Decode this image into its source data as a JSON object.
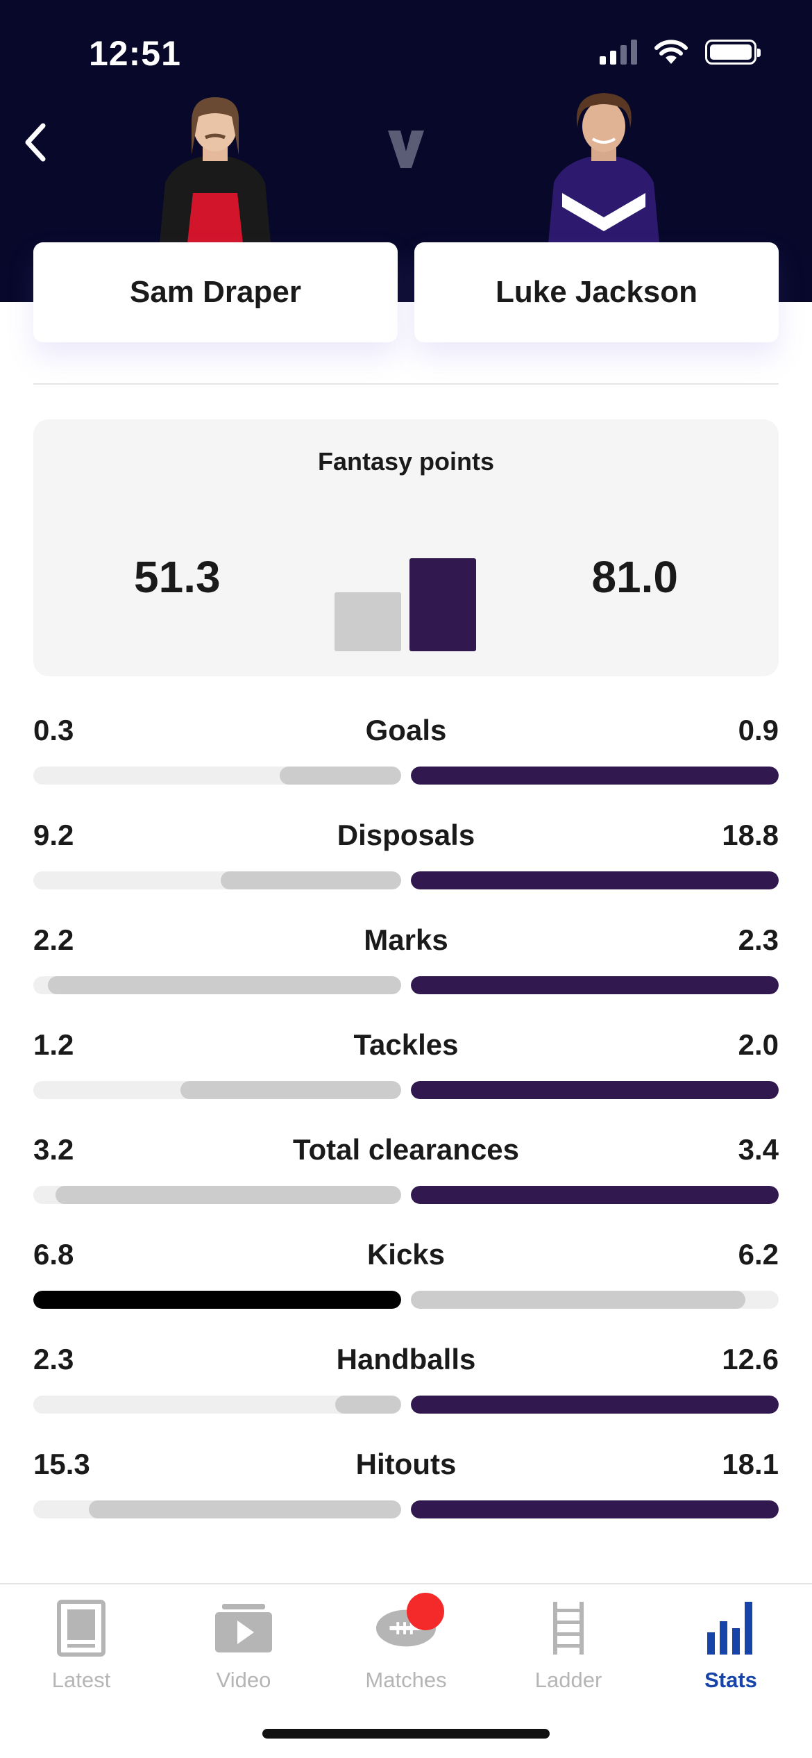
{
  "status_bar": {
    "time": "12:51"
  },
  "header": {
    "vs_mark": "v",
    "player_left": {
      "name": "Sam Draper",
      "jersey_color": "#d3152b"
    },
    "player_right": {
      "name": "Luke Jackson",
      "jersey_color": "#2d1a6e"
    }
  },
  "colors": {
    "left_bar": "#cccccc",
    "right_bar": "#31194f",
    "highlight_bar": "#000000",
    "track": "#efefef",
    "active_tab": "#1744a8",
    "badge": "#f42a2a"
  },
  "fantasy": {
    "title": "Fantasy points",
    "left_value": "51.3",
    "right_value": "81.0",
    "left_level": 0.6333,
    "right_level": 1.0
  },
  "stats": [
    {
      "label": "Goals",
      "left": "0.3",
      "right": "0.9",
      "left_fill": 0.33,
      "right_fill": 1.0,
      "leader": "right"
    },
    {
      "label": "Disposals",
      "left": "9.2",
      "right": "18.8",
      "left_fill": 0.49,
      "right_fill": 1.0,
      "leader": "right"
    },
    {
      "label": "Marks",
      "left": "2.2",
      "right": "2.3",
      "left_fill": 0.96,
      "right_fill": 1.0,
      "leader": "right"
    },
    {
      "label": "Tackles",
      "left": "1.2",
      "right": "2.0",
      "left_fill": 0.6,
      "right_fill": 1.0,
      "leader": "right"
    },
    {
      "label": "Total clearances",
      "left": "3.2",
      "right": "3.4",
      "left_fill": 0.94,
      "right_fill": 1.0,
      "leader": "right"
    },
    {
      "label": "Kicks",
      "left": "6.8",
      "right": "6.2",
      "left_fill": 1.0,
      "right_fill": 0.91,
      "leader": "left"
    },
    {
      "label": "Handballs",
      "left": "2.3",
      "right": "12.6",
      "left_fill": 0.18,
      "right_fill": 1.0,
      "leader": "right"
    },
    {
      "label": "Hitouts",
      "left": "15.3",
      "right": "18.1",
      "left_fill": 0.85,
      "right_fill": 1.0,
      "leader": "right"
    }
  ],
  "tabbar": {
    "tabs": [
      {
        "label": "Latest",
        "icon": "tablet-icon",
        "active": false
      },
      {
        "label": "Video",
        "icon": "play-icon",
        "active": false
      },
      {
        "label": "Matches",
        "icon": "football-icon",
        "active": false,
        "badge": true
      },
      {
        "label": "Ladder",
        "icon": "ladder-icon",
        "active": false
      },
      {
        "label": "Stats",
        "icon": "bar-chart-icon",
        "active": true
      }
    ]
  }
}
